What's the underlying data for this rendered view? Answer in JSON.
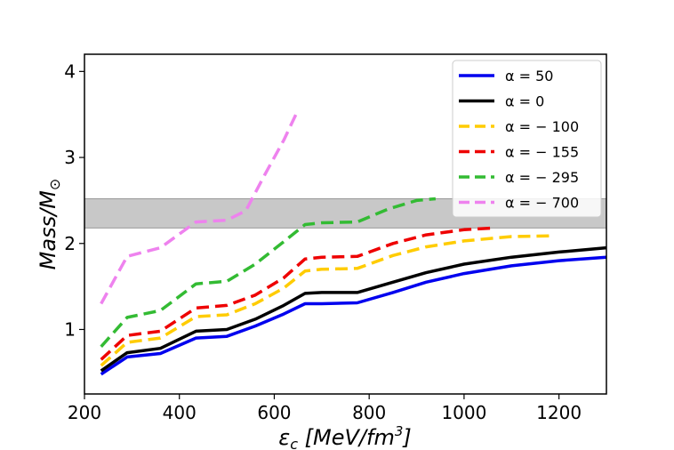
{
  "chart_data": {
    "type": "line",
    "xlabel_main": "ε",
    "xlabel_sub": "c",
    "xlabel_units": " [MeV/fm",
    "xlabel_sup": "3",
    "xlabel_close": "]",
    "ylabel_main": "Mass/M",
    "ylabel_sub": "⊙",
    "xlim": [
      200,
      1300
    ],
    "ylim": [
      0.25,
      4.2
    ],
    "xticks": [
      200,
      400,
      600,
      800,
      1000,
      1200
    ],
    "yticks": [
      1,
      2,
      3,
      4
    ],
    "band": {
      "y0": 2.18,
      "y1": 2.52,
      "color": "#c8c8c8"
    },
    "legend_position": "upper right",
    "series": [
      {
        "name": "α = 50",
        "color": "#0000ee",
        "dash": false,
        "x": [
          235,
          290,
          360,
          435,
          500,
          560,
          620,
          665,
          700,
          775,
          850,
          920,
          1000,
          1100,
          1200,
          1300
        ],
        "y": [
          0.48,
          0.68,
          0.72,
          0.9,
          0.92,
          1.04,
          1.18,
          1.3,
          1.3,
          1.31,
          1.43,
          1.55,
          1.65,
          1.74,
          1.8,
          1.84
        ]
      },
      {
        "name": "α = 0",
        "color": "#000000",
        "dash": false,
        "x": [
          235,
          290,
          360,
          435,
          500,
          560,
          620,
          665,
          700,
          775,
          850,
          920,
          1000,
          1100,
          1200,
          1300
        ],
        "y": [
          0.52,
          0.73,
          0.78,
          0.98,
          1.0,
          1.12,
          1.28,
          1.42,
          1.43,
          1.43,
          1.55,
          1.66,
          1.76,
          1.84,
          1.9,
          1.95
        ]
      },
      {
        "name": "α = − 100",
        "color": "#ffcc00",
        "dash": true,
        "x": [
          235,
          290,
          360,
          435,
          500,
          560,
          620,
          665,
          700,
          775,
          850,
          920,
          1000,
          1100,
          1190
        ],
        "y": [
          0.58,
          0.85,
          0.9,
          1.15,
          1.17,
          1.3,
          1.48,
          1.68,
          1.7,
          1.71,
          1.86,
          1.96,
          2.03,
          2.08,
          2.09
        ]
      },
      {
        "name": "α = − 155",
        "color": "#ee0000",
        "dash": true,
        "x": [
          235,
          290,
          360,
          435,
          500,
          560,
          620,
          665,
          700,
          775,
          850,
          920,
          1000,
          1060
        ],
        "y": [
          0.65,
          0.93,
          0.98,
          1.25,
          1.28,
          1.4,
          1.6,
          1.82,
          1.84,
          1.85,
          2.0,
          2.1,
          2.16,
          2.18
        ]
      },
      {
        "name": "α = − 295",
        "color": "#33bb33",
        "dash": true,
        "x": [
          235,
          290,
          360,
          435,
          500,
          560,
          620,
          665,
          700,
          775,
          840,
          900,
          940
        ],
        "y": [
          0.8,
          1.14,
          1.22,
          1.53,
          1.56,
          1.76,
          2.02,
          2.22,
          2.24,
          2.25,
          2.4,
          2.5,
          2.52
        ]
      },
      {
        "name": "α = − 700",
        "color": "#ee82ee",
        "dash": true,
        "x": [
          235,
          290,
          360,
          435,
          500,
          540,
          580,
          620,
          650
        ],
        "y": [
          1.3,
          1.85,
          1.95,
          2.25,
          2.27,
          2.38,
          2.8,
          3.2,
          3.55
        ]
      }
    ]
  }
}
